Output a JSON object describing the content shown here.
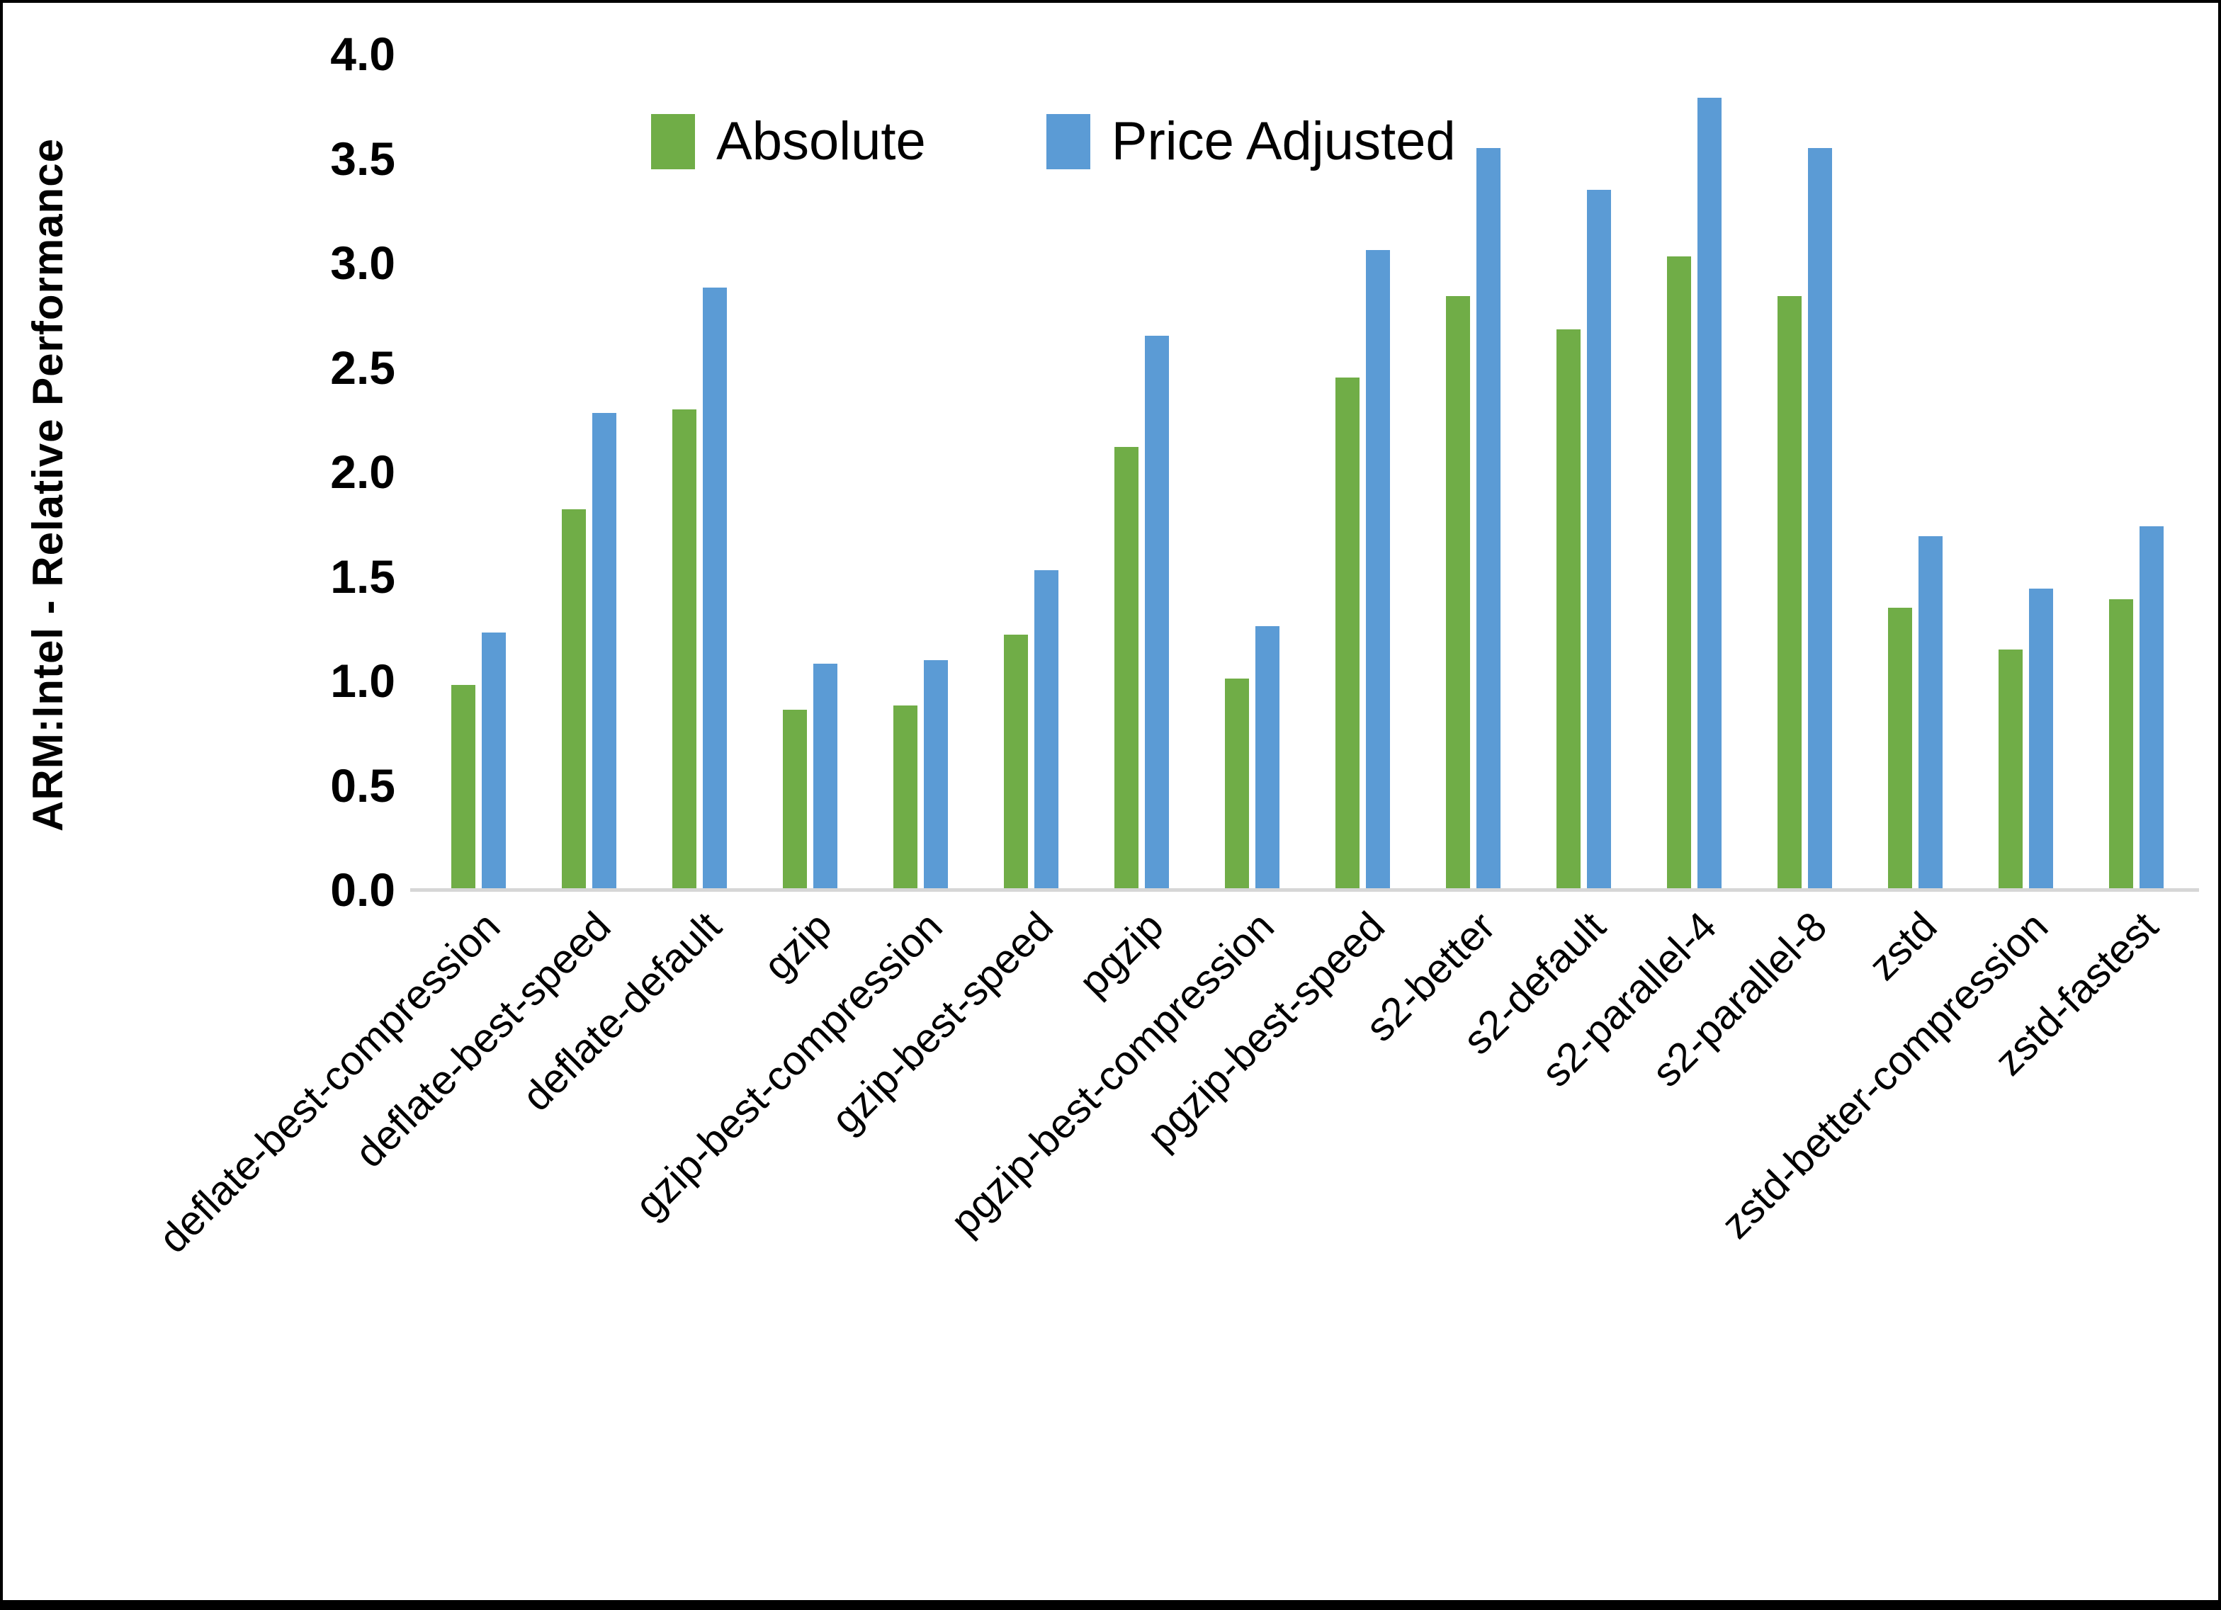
{
  "chart_data": {
    "type": "bar",
    "title": "",
    "xlabel": "",
    "ylabel": "ARM:Intel - Relative Performance",
    "ylim": [
      0,
      4
    ],
    "yticks": [
      "0.0",
      "0.5",
      "1.0",
      "1.5",
      "2.0",
      "2.5",
      "3.0",
      "3.5",
      "4.0"
    ],
    "grid": false,
    "legend_position": "top-center",
    "categories": [
      "deflate-best-compression",
      "deflate-best-speed",
      "deflate-default",
      "gzip",
      "gzip-best-compression",
      "gzip-best-speed",
      "pgzip",
      "pgzip-best-compression",
      "pgzip-best-speed",
      "s2-better",
      "s2-default",
      "s2-parallel-4",
      "s2-parallel-8",
      "zstd",
      "zstd-better-compression",
      "zstd-fastest"
    ],
    "series": [
      {
        "name": "Absolute",
        "color": "#70AD47",
        "values": [
          0.98,
          1.82,
          2.3,
          0.86,
          0.88,
          1.22,
          2.12,
          1.01,
          2.45,
          2.84,
          2.68,
          3.03,
          2.84,
          1.35,
          1.15,
          1.39
        ]
      },
      {
        "name": "Price Adjusted",
        "color": "#5B9BD5",
        "values": [
          1.23,
          2.28,
          2.88,
          1.08,
          1.1,
          1.53,
          2.65,
          1.26,
          3.06,
          3.55,
          3.35,
          3.79,
          3.55,
          1.69,
          1.44,
          1.74
        ]
      }
    ]
  },
  "colors": {
    "axis_line": "#D6D6D6",
    "text": "#000000",
    "background": "#FFFFFF",
    "frame": "#000000"
  }
}
